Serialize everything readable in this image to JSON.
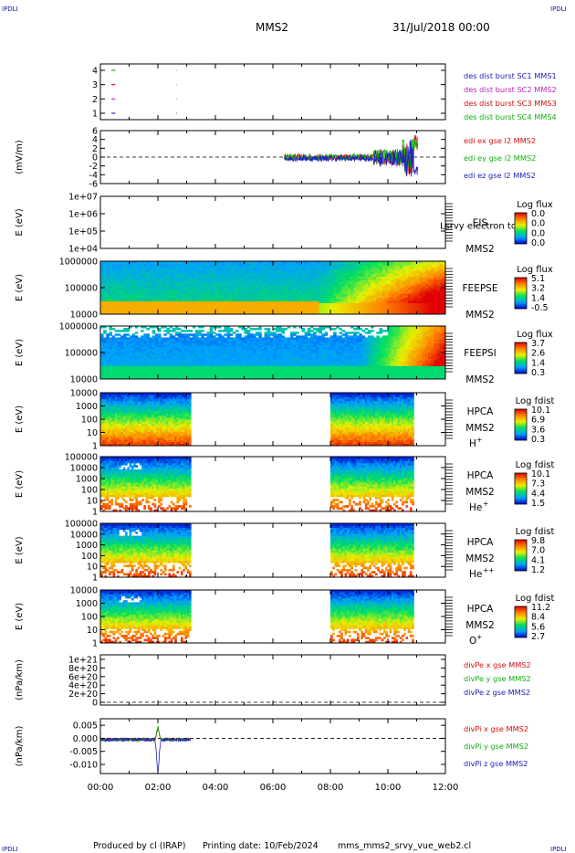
{
  "header": {
    "corner_tag": "IPDLI",
    "title": "MMS2",
    "date": "31/Jul/2018 00:00"
  },
  "footer": {
    "produced_by": "Produced by cl (IRAP)",
    "printing_date": "Printing date: 10/Feb/2024",
    "filename": "mms_mms2_srvy_vue_web2.cl"
  },
  "colors": {
    "burst_sc1": "#2020c0",
    "burst_sc2": "#c020c0",
    "burst_sc3": "#d01010",
    "burst_sc4": "#10b010",
    "x_component": "#d01010",
    "y_component": "#10b010",
    "z_component": "#2020c0"
  },
  "chart_data": {
    "type": "multi-panel time series",
    "x_axis": {
      "range": [
        "00:00",
        "12:00"
      ],
      "tick_labels": [
        "00:00",
        "02:00",
        "04:00",
        "06:00",
        "08:00",
        "10:00",
        "12:00"
      ]
    },
    "panels": [
      {
        "id": "burst",
        "type": "scatter",
        "yticks": [
          "1",
          "2",
          "3",
          "4"
        ],
        "legend": [
          "des dist burst SC1 MMS1",
          "des dist burst SC2 MMS2",
          "des dist burst SC3 MMS3",
          "des dist burst SC4 MMS4"
        ],
        "burst_times": [
          0.45,
          2.65
        ]
      },
      {
        "id": "edi",
        "type": "line",
        "ylabel": "(mV/m)",
        "yticks": [
          "6",
          "4",
          "2",
          "0",
          "-2",
          "-4",
          "-6"
        ],
        "ylim": [
          -6,
          6
        ],
        "legend": [
          "edi ex gse l2 MMS2",
          "edi ey gse l2 MMS2",
          "edi ez gse l2 MMS2"
        ],
        "data_window": [
          6.4,
          11.05
        ]
      },
      {
        "id": "eis",
        "type": "heatmap",
        "ylabel": "E (eV)",
        "yticks": [
          "1e+07",
          "1e+06",
          "1e+05",
          "1e+04"
        ],
        "labels": [
          "EIS",
          "MMS2"
        ],
        "overlay_label": "Lsrvy electron to",
        "colorbar_title": "Log flux",
        "colorbar_ticks": [
          "0.0",
          "0.0",
          "0.0",
          "0.0"
        ]
      },
      {
        "id": "feepse",
        "type": "heatmap",
        "ylabel": "E (eV)",
        "yticks": [
          "1000000",
          "100000",
          "10000"
        ],
        "labels": [
          "FEEPSE",
          "MMS2"
        ],
        "colorbar_title": "Log flux",
        "colorbar_ticks": [
          "5.1",
          "3.2",
          "1.4",
          "-0.5"
        ]
      },
      {
        "id": "feepsi",
        "type": "heatmap",
        "ylabel": "E (eV)",
        "yticks": [
          "1000000",
          "100000",
          "10000"
        ],
        "labels": [
          "FEEPSI",
          "MMS2"
        ],
        "colorbar_title": "Log flux",
        "colorbar_ticks": [
          "3.7",
          "2.6",
          "1.4",
          "0.3"
        ]
      },
      {
        "id": "hpca_h",
        "type": "heatmap",
        "ylabel": "E (eV)",
        "yticks": [
          "10000",
          "1000",
          "100",
          "10",
          "1"
        ],
        "labels": [
          "HPCA",
          "MMS2"
        ],
        "species": "H",
        "species_charge": "+",
        "colorbar_title": "Log fdist",
        "colorbar_ticks": [
          "10.1",
          "6.9",
          "3.6",
          "0.3"
        ],
        "data_windows": [
          [
            0.0,
            3.15
          ],
          [
            8.0,
            10.9
          ]
        ]
      },
      {
        "id": "hpca_he",
        "type": "heatmap",
        "ylabel": "E (eV)",
        "yticks": [
          "100000",
          "10000",
          "1000",
          "100",
          "10",
          "1"
        ],
        "labels": [
          "HPCA",
          "MMS2"
        ],
        "species": "He",
        "species_charge": "+",
        "colorbar_title": "Log fdist",
        "colorbar_ticks": [
          "10.1",
          "7.3",
          "4.4",
          "1.5"
        ],
        "data_windows": [
          [
            0.0,
            3.15
          ],
          [
            8.0,
            10.9
          ]
        ]
      },
      {
        "id": "hpca_hepp",
        "type": "heatmap",
        "ylabel": "E (eV)",
        "yticks": [
          "100000",
          "10000",
          "1000",
          "100",
          "10",
          "1"
        ],
        "labels": [
          "HPCA",
          "MMS2"
        ],
        "species": "He",
        "species_charge": "++",
        "colorbar_title": "Log fdist",
        "colorbar_ticks": [
          "9.8",
          "7.0",
          "4.1",
          "1.2"
        ],
        "data_windows": [
          [
            0.0,
            3.15
          ],
          [
            8.0,
            10.9
          ]
        ]
      },
      {
        "id": "hpca_o",
        "type": "heatmap",
        "ylabel": "E (eV)",
        "yticks": [
          "10000",
          "1000",
          "100",
          "10",
          "1"
        ],
        "labels": [
          "HPCA",
          "MMS2"
        ],
        "species": "O",
        "species_charge": "+",
        "colorbar_title": "Log fdist",
        "colorbar_ticks": [
          "11.2",
          "8.4",
          "5.6",
          "2.7"
        ],
        "data_windows": [
          [
            0.0,
            3.15
          ],
          [
            8.0,
            10.9
          ]
        ]
      },
      {
        "id": "divpe",
        "type": "line",
        "ylabel": "(nPa/km)",
        "yticks": [
          "1e+21",
          "8e+20",
          "6e+20",
          "4e+20",
          "2e+20",
          "0"
        ],
        "legend": [
          "divPe x gse MMS2",
          "divPe y gse MMS2",
          "divPe z gse MMS2"
        ]
      },
      {
        "id": "divpi",
        "type": "line",
        "ylabel": "(nPa/km)",
        "yticks": [
          "0.005",
          "0.000",
          "-0.005",
          "-0.010"
        ],
        "ylim": [
          -0.0135,
          0.0075
        ],
        "legend": [
          "divPi x gse MMS2",
          "divPi y gse MMS2",
          "divPi z gse MMS2"
        ],
        "data_window": [
          0.0,
          3.15
        ]
      }
    ]
  }
}
